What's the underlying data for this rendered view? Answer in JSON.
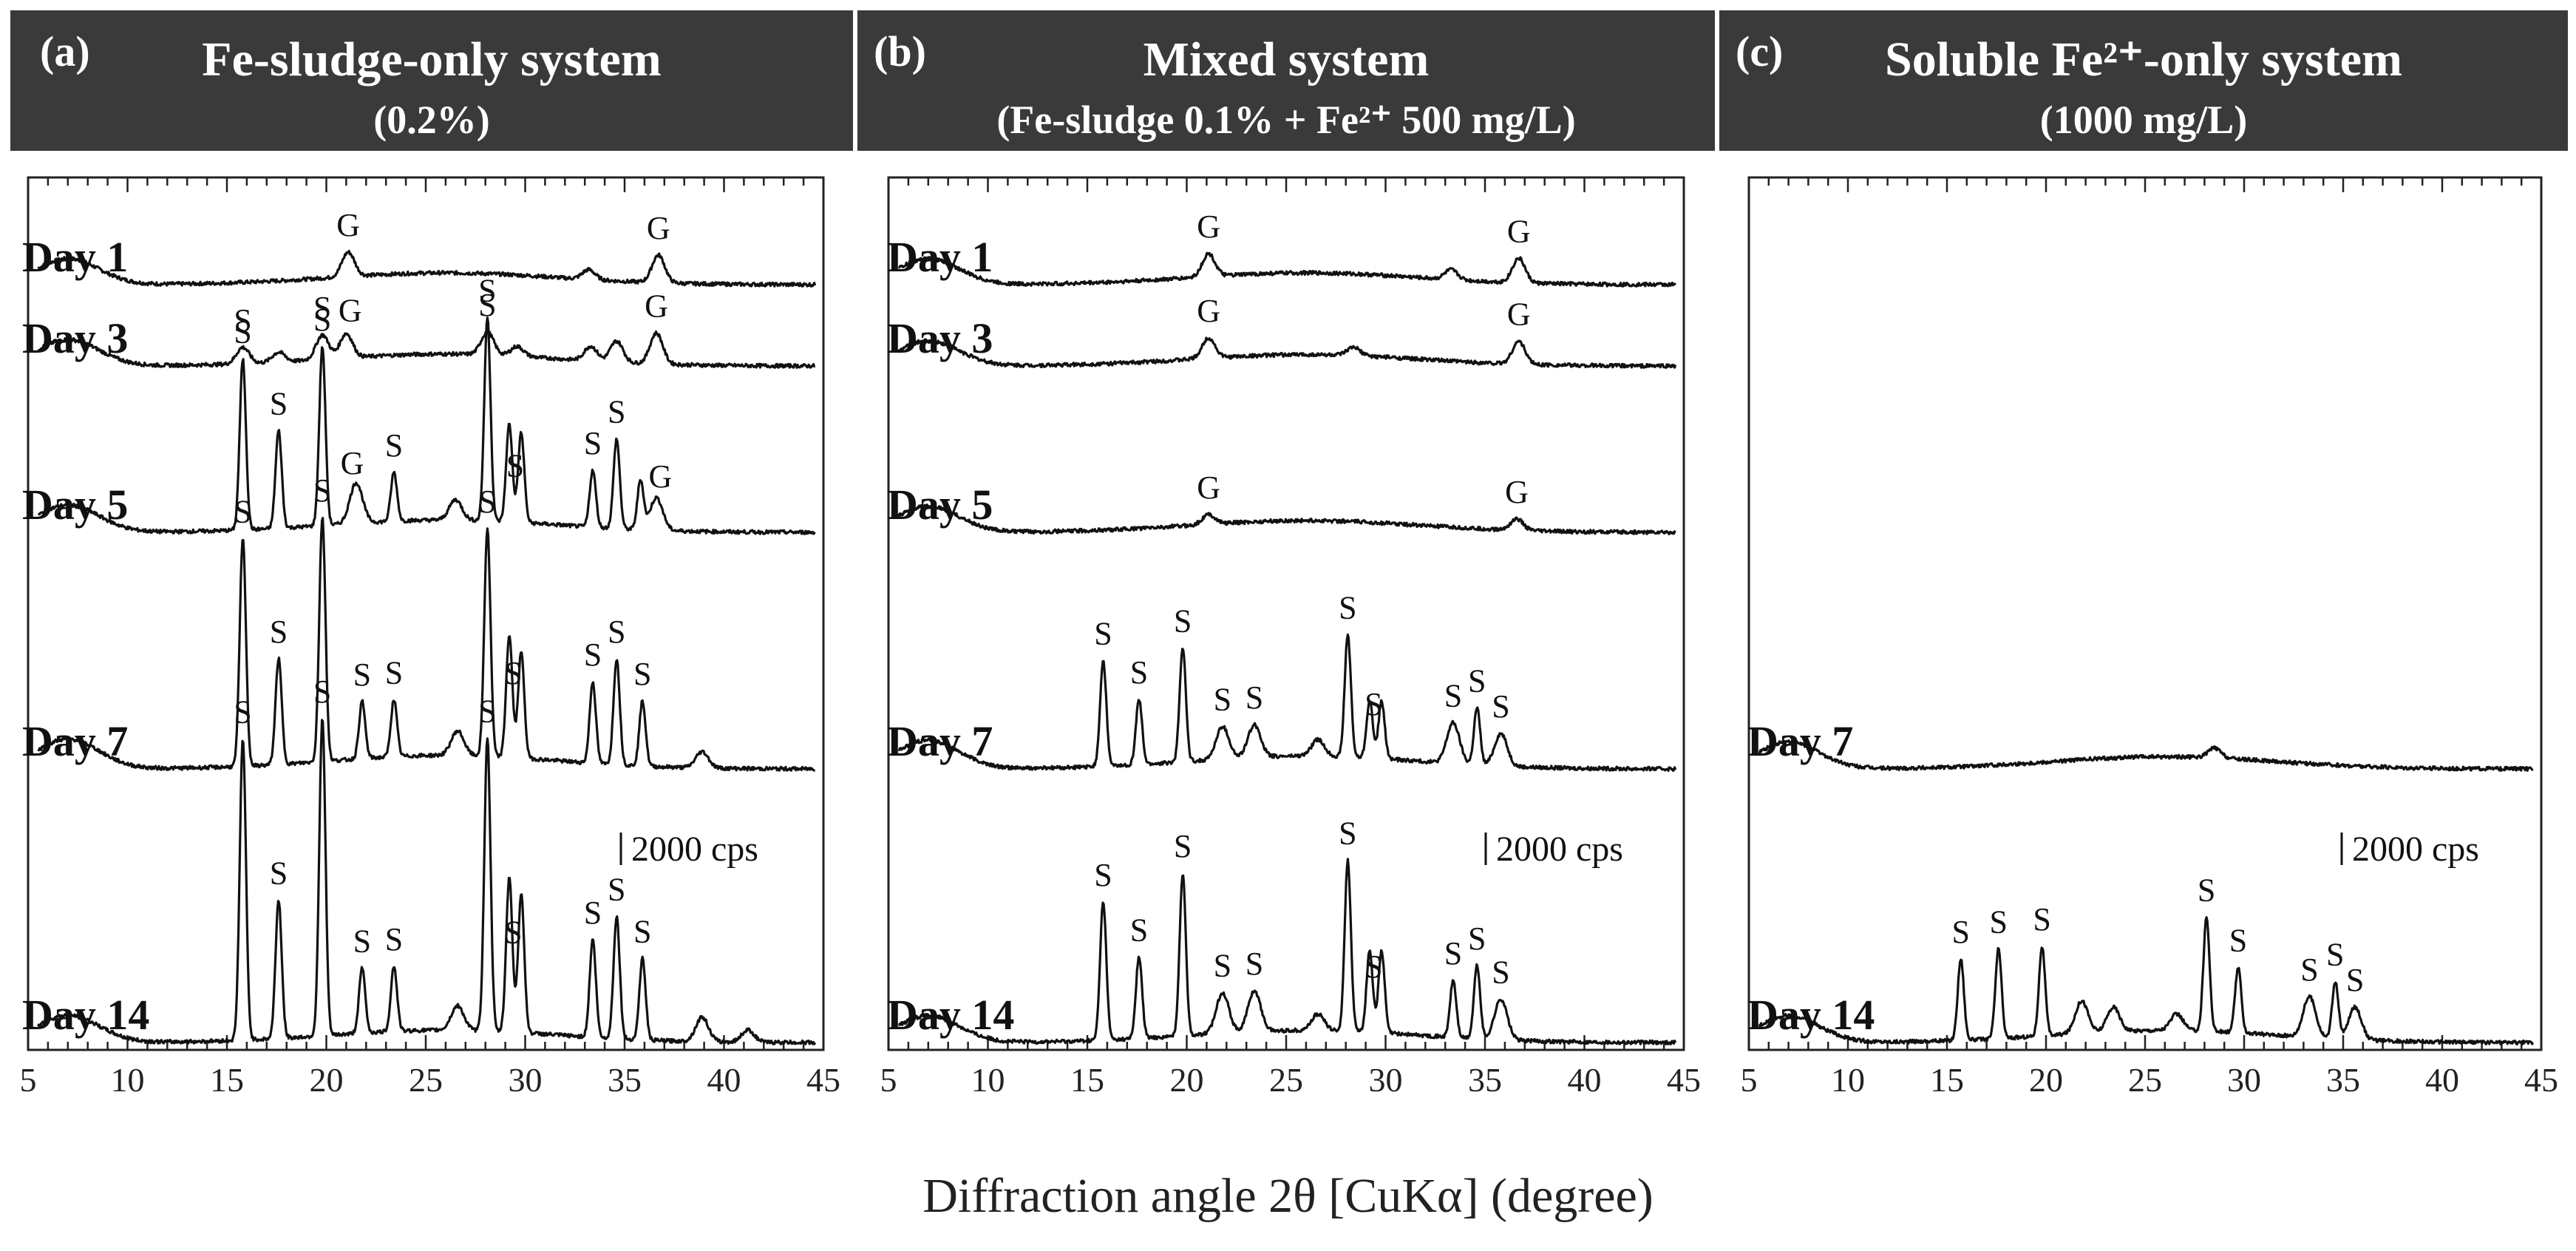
{
  "figure": {
    "x_axis_label": "Diffraction angle 2θ    [CuKα] (degree)",
    "colors": {
      "header_bg": "#3a3a3a",
      "header_text": "#ffffff",
      "line": "#111111",
      "axis": "#222222"
    }
  },
  "chart_data": [
    {
      "type": "line",
      "panel": "(a)",
      "title": "Fe-sludge-only system",
      "subtitle": "(0.2%)",
      "xlabel": "Diffraction angle 2θ    [CuKα] (degree)",
      "xlim": [
        5,
        45
      ],
      "xticks": [
        5,
        10,
        15,
        20,
        25,
        30,
        35,
        40,
        45
      ],
      "scale_bar": "2000 cps",
      "series": [
        {
          "name": "Day 1",
          "level": 0.29,
          "peaks": [
            [
              21.1,
              0.03
            ],
            [
              33.2,
              0.012
            ],
            [
              36.7,
              0.034
            ]
          ],
          "markers": [
            {
              "label": "G",
              "x": 21.1
            },
            {
              "label": "G",
              "x": 36.7
            }
          ]
        },
        {
          "name": "Day 3",
          "level": 0.295,
          "peaks": [
            [
              15.8,
              0.02
            ],
            [
              17.6,
              0.012
            ],
            [
              19.8,
              0.03
            ],
            [
              21.0,
              0.03
            ],
            [
              28.1,
              0.028
            ],
            [
              29.6,
              0.012
            ],
            [
              33.3,
              0.018
            ],
            [
              34.6,
              0.026
            ],
            [
              36.6,
              0.038
            ]
          ],
          "markers": [
            {
              "label": "S",
              "x": 15.8
            },
            {
              "label": "S",
              "x": 19.8
            },
            {
              "label": "G",
              "x": 21.2
            },
            {
              "label": "S",
              "x": 28.1
            },
            {
              "label": "G",
              "x": 36.6
            }
          ]
        },
        {
          "name": "Day 5",
          "level": 0.305,
          "peaks": [
            [
              15.8,
              0.21
            ],
            [
              17.6,
              0.12
            ],
            [
              19.8,
              0.22
            ],
            [
              21.5,
              0.05
            ],
            [
              23.4,
              0.06
            ],
            [
              26.5,
              0.025
            ],
            [
              28.1,
              0.25
            ],
            [
              29.2,
              0.12
            ],
            [
              29.8,
              0.11
            ],
            [
              33.4,
              0.07
            ],
            [
              34.6,
              0.11
            ],
            [
              35.8,
              0.06
            ],
            [
              36.6,
              0.04
            ]
          ],
          "markers": [
            {
              "label": "S",
              "x": 15.8
            },
            {
              "label": "S",
              "x": 17.6
            },
            {
              "label": "S",
              "x": 19.8
            },
            {
              "label": "G",
              "x": 21.3
            },
            {
              "label": "S",
              "x": 23.4
            },
            {
              "label": "S",
              "x": 28.1
            },
            {
              "label": "S",
              "x": 29.5
            },
            {
              "label": "S",
              "x": 33.4
            },
            {
              "label": "S",
              "x": 34.6
            },
            {
              "label": "G",
              "x": 36.8
            }
          ]
        },
        {
          "name": "Day 7",
          "level": 0.335,
          "peaks": [
            [
              15.8,
              0.28
            ],
            [
              17.6,
              0.13
            ],
            [
              19.8,
              0.3
            ],
            [
              21.8,
              0.07
            ],
            [
              23.4,
              0.07
            ],
            [
              26.6,
              0.03
            ],
            [
              28.1,
              0.28
            ],
            [
              29.2,
              0.15
            ],
            [
              29.8,
              0.13
            ],
            [
              33.4,
              0.1
            ],
            [
              34.6,
              0.13
            ],
            [
              35.9,
              0.08
            ],
            [
              38.9,
              0.02
            ]
          ],
          "markers": [
            {
              "label": "S",
              "x": 15.8
            },
            {
              "label": "S",
              "x": 17.6
            },
            {
              "label": "S",
              "x": 19.8
            },
            {
              "label": "S",
              "x": 21.8
            },
            {
              "label": "S",
              "x": 23.4
            },
            {
              "label": "S",
              "x": 28.1
            },
            {
              "label": "S",
              "x": 29.4
            },
            {
              "label": "S",
              "x": 33.4
            },
            {
              "label": "S",
              "x": 34.6
            },
            {
              "label": "S",
              "x": 35.9
            }
          ]
        },
        {
          "name": "Day 14",
          "level": 0.305,
          "peaks": [
            [
              15.8,
              0.37
            ],
            [
              17.6,
              0.17
            ],
            [
              19.8,
              0.39
            ],
            [
              21.8,
              0.08
            ],
            [
              23.4,
              0.08
            ],
            [
              26.6,
              0.03
            ],
            [
              28.1,
              0.36
            ],
            [
              29.2,
              0.19
            ],
            [
              29.8,
              0.17
            ],
            [
              33.4,
              0.12
            ],
            [
              34.6,
              0.15
            ],
            [
              35.9,
              0.1
            ],
            [
              38.9,
              0.03
            ],
            [
              41.2,
              0.015
            ]
          ],
          "markers": [
            {
              "label": "S",
              "x": 15.8
            },
            {
              "label": "S",
              "x": 17.6
            },
            {
              "label": "S",
              "x": 19.8
            },
            {
              "label": "S",
              "x": 21.8
            },
            {
              "label": "S",
              "x": 23.4
            },
            {
              "label": "S",
              "x": 28.1
            },
            {
              "label": "S",
              "x": 29.4
            },
            {
              "label": "S",
              "x": 33.4
            },
            {
              "label": "S",
              "x": 34.6
            },
            {
              "label": "S",
              "x": 35.9
            }
          ]
        }
      ]
    },
    {
      "type": "line",
      "panel": "(b)",
      "title": "Mixed system",
      "subtitle": "(Fe-sludge 0.1% + Fe²⁺ 500 mg/L)",
      "xlabel": "Diffraction angle 2θ    [CuKα] (degree)",
      "xlim": [
        5,
        45
      ],
      "xticks": [
        5,
        10,
        15,
        20,
        25,
        30,
        35,
        40,
        45
      ],
      "scale_bar": "2000 cps",
      "series": [
        {
          "name": "Day 1",
          "level": 0.29,
          "peaks": [
            [
              21.1,
              0.028
            ],
            [
              33.3,
              0.012
            ],
            [
              36.7,
              0.03
            ]
          ],
          "markers": [
            {
              "label": "G",
              "x": 21.1
            },
            {
              "label": "G",
              "x": 36.7
            }
          ]
        },
        {
          "name": "Day 3",
          "level": 0.28,
          "peaks": [
            [
              21.1,
              0.025
            ],
            [
              28.4,
              0.01
            ],
            [
              36.7,
              0.028
            ]
          ],
          "markers": [
            {
              "label": "G",
              "x": 21.1
            },
            {
              "label": "G",
              "x": 36.7
            }
          ]
        },
        {
          "name": "Day 5",
          "level": 0.29,
          "peaks": [
            [
              21.1,
              0.012
            ],
            [
              36.6,
              0.014
            ]
          ],
          "markers": [
            {
              "label": "G",
              "x": 21.1
            },
            {
              "label": "G",
              "x": 36.6
            }
          ]
        },
        {
          "name": "Day 7",
          "level": 0.32,
          "peaks": [
            [
              15.8,
              0.13
            ],
            [
              17.6,
              0.08
            ],
            [
              19.8,
              0.14
            ],
            [
              21.8,
              0.04
            ],
            [
              23.4,
              0.04
            ],
            [
              26.6,
              0.02
            ],
            [
              28.1,
              0.15
            ],
            [
              29.2,
              0.07
            ],
            [
              29.8,
              0.07
            ],
            [
              33.4,
              0.05
            ],
            [
              34.6,
              0.07
            ],
            [
              35.8,
              0.04
            ]
          ],
          "markers": [
            {
              "label": "S",
              "x": 15.8
            },
            {
              "label": "S",
              "x": 17.6
            },
            {
              "label": "S",
              "x": 19.8
            },
            {
              "label": "S",
              "x": 21.8
            },
            {
              "label": "S",
              "x": 23.4
            },
            {
              "label": "S",
              "x": 28.1
            },
            {
              "label": "S",
              "x": 29.4
            },
            {
              "label": "S",
              "x": 33.4
            },
            {
              "label": "S",
              "x": 34.6
            },
            {
              "label": "S",
              "x": 35.8
            }
          ]
        },
        {
          "name": "Day 14",
          "level": 0.3,
          "peaks": [
            [
              15.8,
              0.17
            ],
            [
              17.6,
              0.1
            ],
            [
              19.8,
              0.2
            ],
            [
              21.8,
              0.05
            ],
            [
              23.4,
              0.05
            ],
            [
              26.6,
              0.02
            ],
            [
              28.1,
              0.21
            ],
            [
              29.2,
              0.1
            ],
            [
              29.8,
              0.1
            ],
            [
              33.4,
              0.07
            ],
            [
              34.6,
              0.09
            ],
            [
              35.8,
              0.05
            ]
          ],
          "markers": [
            {
              "label": "S",
              "x": 15.8
            },
            {
              "label": "S",
              "x": 17.6
            },
            {
              "label": "S",
              "x": 19.8
            },
            {
              "label": "S",
              "x": 21.8
            },
            {
              "label": "S",
              "x": 23.4
            },
            {
              "label": "S",
              "x": 28.1
            },
            {
              "label": "S",
              "x": 29.4
            },
            {
              "label": "S",
              "x": 33.4
            },
            {
              "label": "S",
              "x": 34.6
            },
            {
              "label": "S",
              "x": 35.8
            }
          ]
        }
      ]
    },
    {
      "type": "line",
      "panel": "(c)",
      "title": "Soluble Fe²⁺-only system",
      "subtitle": "(1000 mg/L)",
      "xlabel": "Diffraction angle 2θ    [CuKα] (degree)",
      "xlim": [
        5,
        45
      ],
      "xticks": [
        5,
        10,
        15,
        20,
        25,
        30,
        35,
        40,
        45
      ],
      "scale_bar": "2000 cps",
      "series": [
        {
          "name": "Day 7",
          "level": 0.3,
          "peaks": [
            [
              28.5,
              0.012
            ]
          ],
          "markers": []
        },
        {
          "name": "Day 14",
          "level": 0.3,
          "peaks": [
            [
              15.7,
              0.1
            ],
            [
              17.6,
              0.11
            ],
            [
              19.8,
              0.11
            ],
            [
              21.8,
              0.04
            ],
            [
              23.4,
              0.03
            ],
            [
              26.6,
              0.02
            ],
            [
              28.1,
              0.14
            ],
            [
              29.7,
              0.08
            ],
            [
              33.3,
              0.05
            ],
            [
              34.6,
              0.07
            ],
            [
              35.6,
              0.04
            ]
          ],
          "markers": [
            {
              "label": "S",
              "x": 15.7
            },
            {
              "label": "S",
              "x": 17.6
            },
            {
              "label": "S",
              "x": 19.8
            },
            {
              "label": "S",
              "x": 28.1
            },
            {
              "label": "S",
              "x": 29.7
            },
            {
              "label": "S",
              "x": 33.3
            },
            {
              "label": "S",
              "x": 34.6
            },
            {
              "label": "S",
              "x": 35.6
            }
          ]
        }
      ]
    }
  ]
}
